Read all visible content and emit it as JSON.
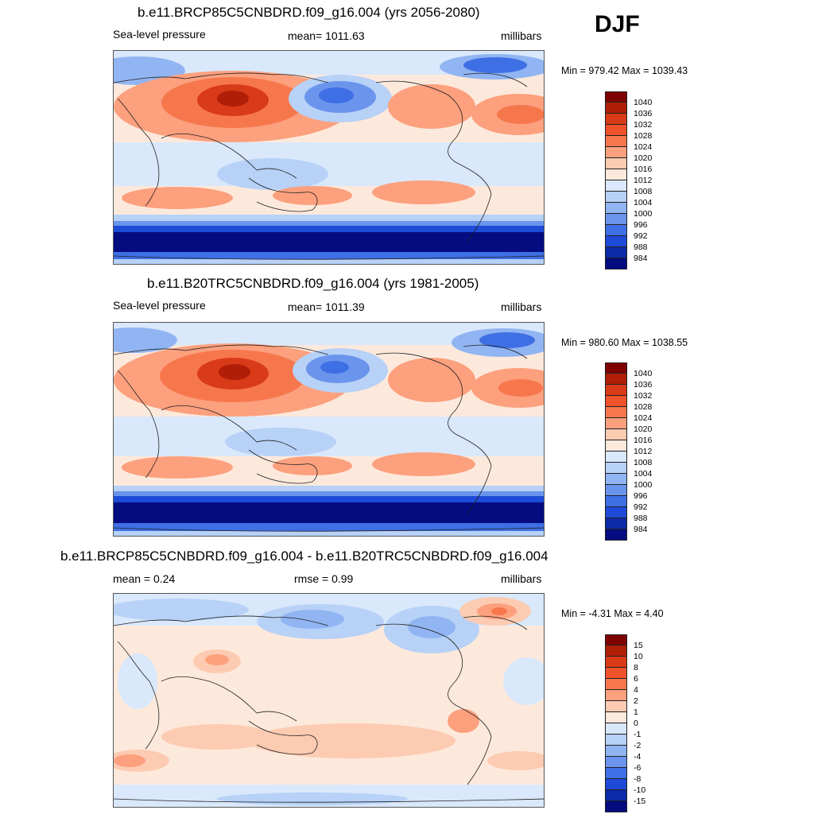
{
  "season": "DJF",
  "panels": [
    {
      "id": "future",
      "title": "b.e11.BRCP85C5CNBDRD.f09_g16.004 (yrs 2056-2080)",
      "left_label": "Sea-level pressure",
      "center_label": "mean= 1011.63",
      "units": "millibars",
      "minmax": "Min = 979.42 Max = 1039.43",
      "colorbar_labels": [
        "1040",
        "1036",
        "1032",
        "1028",
        "1024",
        "1020",
        "1016",
        "1012",
        "1008",
        "1004",
        "1000",
        "996",
        "992",
        "988",
        "984"
      ]
    },
    {
      "id": "historical",
      "title": "b.e11.B20TRC5CNBDRD.f09_g16.004 (yrs 1981-2005)",
      "left_label": "Sea-level pressure",
      "center_label": "mean= 1011.39",
      "units": "millibars",
      "minmax": "Min = 980.60 Max = 1038.55",
      "colorbar_labels": [
        "1040",
        "1036",
        "1032",
        "1028",
        "1024",
        "1020",
        "1016",
        "1012",
        "1008",
        "1004",
        "1000",
        "996",
        "992",
        "988",
        "984"
      ]
    },
    {
      "id": "difference",
      "title": "b.e11.BRCP85C5CNBDRD.f09_g16.004 - b.e11.B20TRC5CNBDRD.f09_g16.004",
      "left_label": "mean =   0.24",
      "center_label": "rmse =   0.99",
      "units": "millibars",
      "minmax": "Min =  -4.31 Max =   4.40",
      "colorbar_labels": [
        "15",
        "10",
        "8",
        "6",
        "4",
        "2",
        "1",
        "0",
        "-1",
        "-2",
        "-4",
        "-6",
        "-8",
        "-10",
        "-15"
      ]
    }
  ],
  "colors": {
    "scale16": [
      "#7f0000",
      "#b01e08",
      "#d93a17",
      "#f0522b",
      "#f7774d",
      "#fca07e",
      "#fdcbb1",
      "#fde9dc",
      "#d9e8fb",
      "#b7d1f7",
      "#91b5f2",
      "#6b95ec",
      "#3f6fe5",
      "#1d4bd8",
      "#0b2aa8",
      "#040c80"
    ]
  }
}
